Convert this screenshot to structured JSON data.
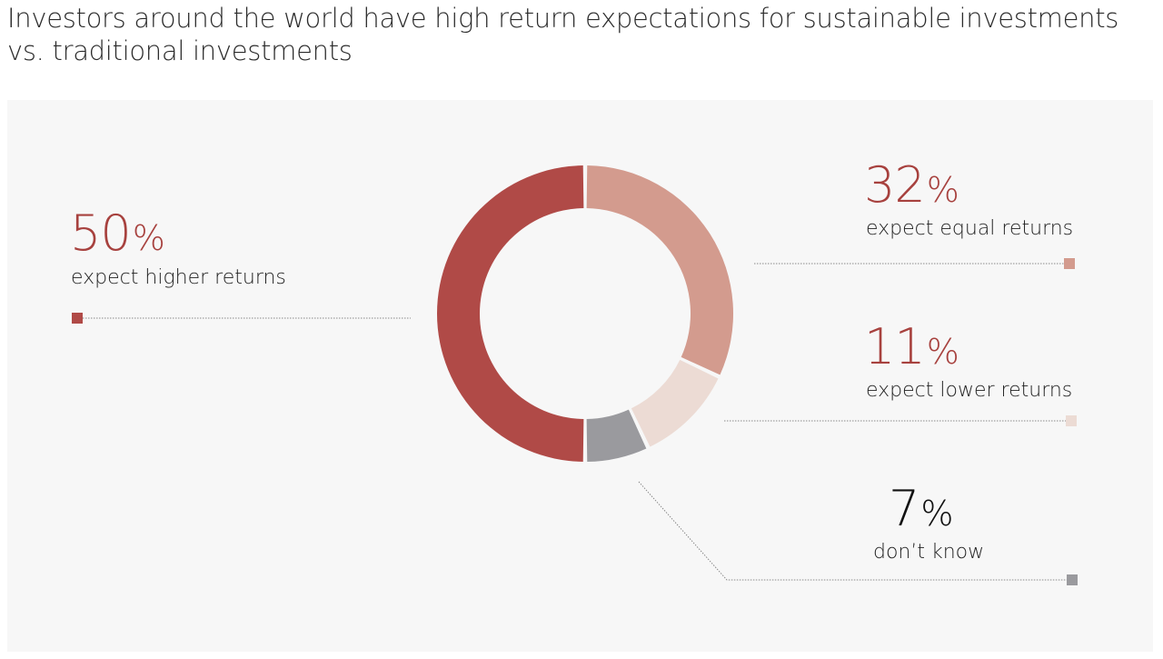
{
  "title": "Investors around the world have high return expectations for sustainable investments vs. traditional investments",
  "colors": {
    "higher": "#b04a47",
    "equal": "#d39b8e",
    "lower": "#ecdbd4",
    "dont_know": "#9a9a9e",
    "pct_accent": "#a7413e",
    "pct_dark": "#111111"
  },
  "chart_data": {
    "type": "pie",
    "variant": "donut",
    "title": "Investors around the world have high return expectations for sustainable investments vs. traditional investments",
    "series": [
      {
        "name": "expect higher returns",
        "value": 50,
        "label": "50",
        "unit": "%"
      },
      {
        "name": "expect equal returns",
        "value": 32,
        "label": "32",
        "unit": "%"
      },
      {
        "name": "expect lower returns",
        "value": 11,
        "label": "11",
        "unit": "%"
      },
      {
        "name": "don’t know",
        "value": 7,
        "label": "7",
        "unit": "%"
      }
    ]
  }
}
